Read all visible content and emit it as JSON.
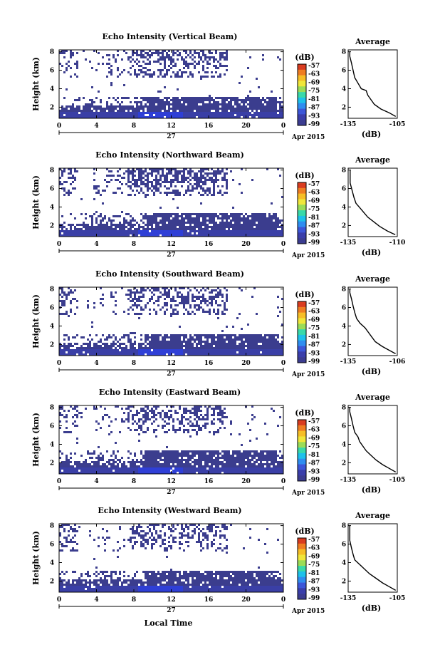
{
  "chart_data": {
    "type": "heatmap",
    "x_label": "Local Time",
    "date_label": "27",
    "month_label": "Apr 2015",
    "x_ticks": [
      "0",
      "4",
      "8",
      "12",
      "16",
      "20",
      "0"
    ],
    "y_label": "Height (km)",
    "y_ticks": [
      "2",
      "4",
      "6",
      "8"
    ],
    "y_range_km": [
      0.8,
      8.2
    ],
    "colorbar_unit": "(dB)",
    "colorbar_ticks": [
      "-57",
      "-63",
      "-69",
      "-75",
      "-81",
      "-87",
      "-93",
      "-99"
    ],
    "colorbar_colors": [
      "#d93c20",
      "#ef7d22",
      "#f6be27",
      "#f0e63a",
      "#9bdc57",
      "#39d9a9",
      "#1ec1ea",
      "#2f8df0",
      "#3c56d8",
      "#3a3eaa",
      "#3b3c90"
    ],
    "profile_title": "Average",
    "profile_xlabel": "(dB)",
    "panels": [
      {
        "title": "Echo Intensity (Vertical Beam)",
        "profile_xticks": [
          "-135",
          "-105"
        ],
        "profile_xrange": [
          -135,
          -105
        ],
        "profile": [
          [
            -106,
            1.0
          ],
          [
            -110,
            1.4
          ],
          [
            -115,
            1.8
          ],
          [
            -119,
            2.3
          ],
          [
            -121,
            2.8
          ],
          [
            -123,
            3.3
          ],
          [
            -124,
            3.8
          ],
          [
            -127,
            4.0
          ],
          [
            -129,
            4.6
          ],
          [
            -131,
            5.2
          ],
          [
            -132,
            6.0
          ],
          [
            -133,
            6.8
          ],
          [
            -134,
            7.5
          ],
          [
            -134,
            8.0
          ]
        ],
        "upper_cover": 0.22,
        "lower_top_km": 3.2
      },
      {
        "title": "Echo Intensity (Northward Beam)",
        "profile_xticks": [
          "-135",
          "-110"
        ],
        "profile_xrange": [
          -135,
          -110
        ],
        "profile": [
          [
            -111,
            1.0
          ],
          [
            -115,
            1.4
          ],
          [
            -119,
            1.9
          ],
          [
            -122,
            2.4
          ],
          [
            -125,
            2.9
          ],
          [
            -127,
            3.4
          ],
          [
            -129,
            3.9
          ],
          [
            -131,
            4.4
          ],
          [
            -132,
            5.0
          ],
          [
            -133,
            5.8
          ],
          [
            -134,
            6.6
          ],
          [
            -134,
            7.5
          ],
          [
            -134,
            8.0
          ]
        ],
        "upper_cover": 0.28,
        "lower_top_km": 3.3
      },
      {
        "title": "Echo Intensity (Southward Beam)",
        "profile_xticks": [
          "-135",
          "-106"
        ],
        "profile_xrange": [
          -135,
          -106
        ],
        "profile": [
          [
            -107,
            1.0
          ],
          [
            -111,
            1.4
          ],
          [
            -115,
            1.8
          ],
          [
            -119,
            2.3
          ],
          [
            -121,
            2.8
          ],
          [
            -123,
            3.3
          ],
          [
            -125,
            3.8
          ],
          [
            -128,
            4.3
          ],
          [
            -130,
            4.8
          ],
          [
            -131,
            5.4
          ],
          [
            -132,
            6.1
          ],
          [
            -133,
            6.9
          ],
          [
            -134,
            7.6
          ],
          [
            -134,
            8.0
          ]
        ],
        "upper_cover": 0.2,
        "lower_top_km": 3.2
      },
      {
        "title": "Echo Intensity (Eastward Beam)",
        "profile_xticks": [
          "-135",
          "-105"
        ],
        "profile_xrange": [
          -135,
          -105
        ],
        "profile": [
          [
            -106,
            1.0
          ],
          [
            -110,
            1.4
          ],
          [
            -114,
            1.8
          ],
          [
            -118,
            2.3
          ],
          [
            -121,
            2.8
          ],
          [
            -124,
            3.3
          ],
          [
            -126,
            3.8
          ],
          [
            -128,
            4.3
          ],
          [
            -129,
            4.8
          ],
          [
            -131,
            5.3
          ],
          [
            -132,
            6.0
          ],
          [
            -133,
            6.8
          ],
          [
            -134,
            7.5
          ],
          [
            -134,
            8.0
          ]
        ],
        "upper_cover": 0.2,
        "lower_top_km": 3.3
      },
      {
        "title": "Echo Intensity (Westward Beam)",
        "profile_xticks": [
          "-135",
          "-105"
        ],
        "profile_xrange": [
          -135,
          -105
        ],
        "profile": [
          [
            -106,
            1.0
          ],
          [
            -110,
            1.4
          ],
          [
            -114,
            1.8
          ],
          [
            -118,
            2.3
          ],
          [
            -122,
            2.8
          ],
          [
            -125,
            3.3
          ],
          [
            -128,
            3.8
          ],
          [
            -131,
            4.3
          ],
          [
            -132,
            4.9
          ],
          [
            -133,
            5.6
          ],
          [
            -134,
            6.4
          ],
          [
            -134,
            7.2
          ],
          [
            -134,
            8.0
          ]
        ],
        "upper_cover": 0.18,
        "lower_top_km": 3.0
      }
    ]
  }
}
